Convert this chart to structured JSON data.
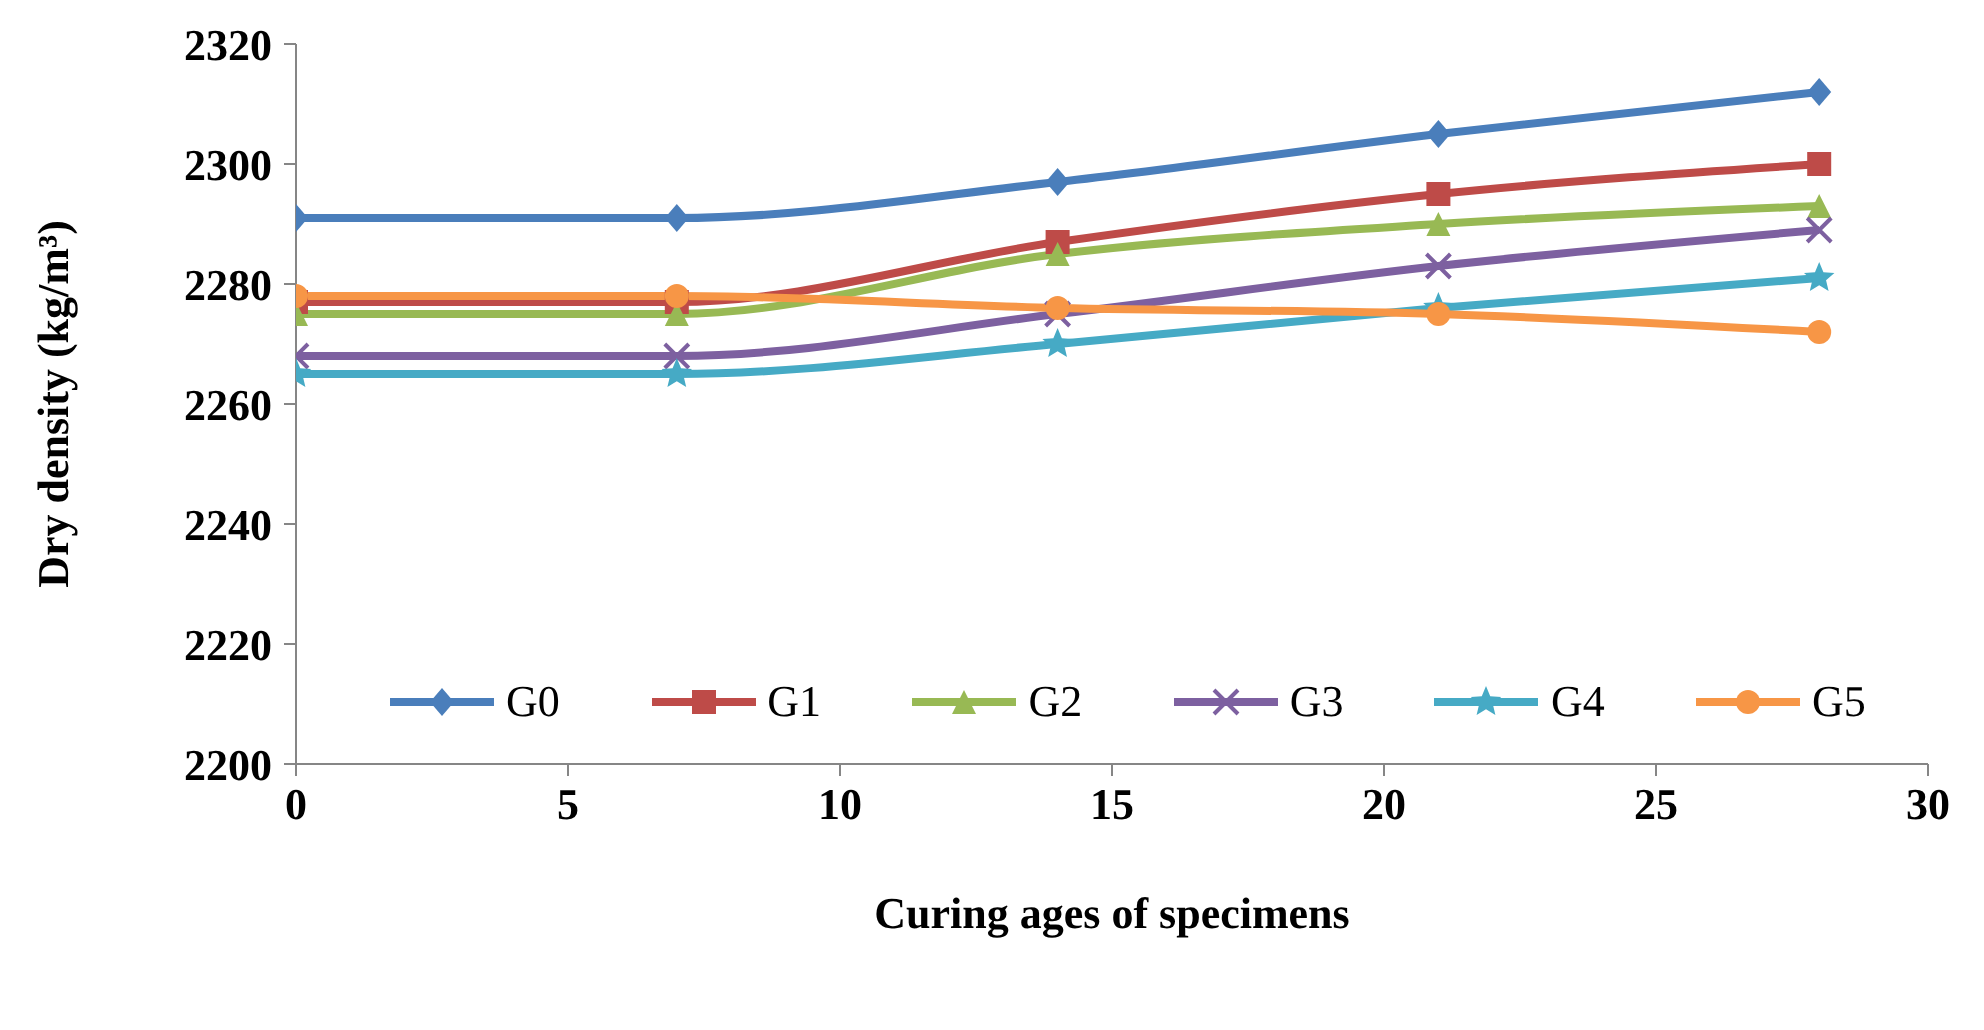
{
  "chart_data": {
    "type": "line",
    "xlabel": "Curing ages of specimens",
    "ylabel": "Dry density (kg/m³)",
    "x": [
      0,
      7,
      14,
      21,
      28
    ],
    "xlim": [
      0,
      30
    ],
    "xticks": [
      0,
      5,
      10,
      15,
      20,
      25,
      30
    ],
    "ylim": [
      2200,
      2320
    ],
    "yticks": [
      2200,
      2220,
      2240,
      2260,
      2280,
      2300,
      2320
    ],
    "legend": "bottom",
    "line_style": "solid",
    "series": [
      {
        "name": "G0",
        "color": "#4a7ebb",
        "marker": "diamond",
        "values": [
          2291,
          2291,
          2297,
          2305,
          2312
        ]
      },
      {
        "name": "G1",
        "color": "#be4b48",
        "marker": "square",
        "values": [
          2277,
          2277,
          2287,
          2295,
          2300
        ]
      },
      {
        "name": "G2",
        "color": "#98b954",
        "marker": "triangle",
        "values": [
          2275,
          2275,
          2285,
          2290,
          2293
        ]
      },
      {
        "name": "G3",
        "color": "#7d60a0",
        "marker": "cross",
        "values": [
          2268,
          2268,
          2275,
          2283,
          2289
        ]
      },
      {
        "name": "G4",
        "color": "#46aac5",
        "marker": "star",
        "values": [
          2265,
          2265,
          2270,
          2276,
          2281
        ]
      },
      {
        "name": "G5",
        "color": "#f79646",
        "marker": "circle",
        "values": [
          2278,
          2278,
          2276,
          2275,
          2272
        ]
      }
    ]
  }
}
